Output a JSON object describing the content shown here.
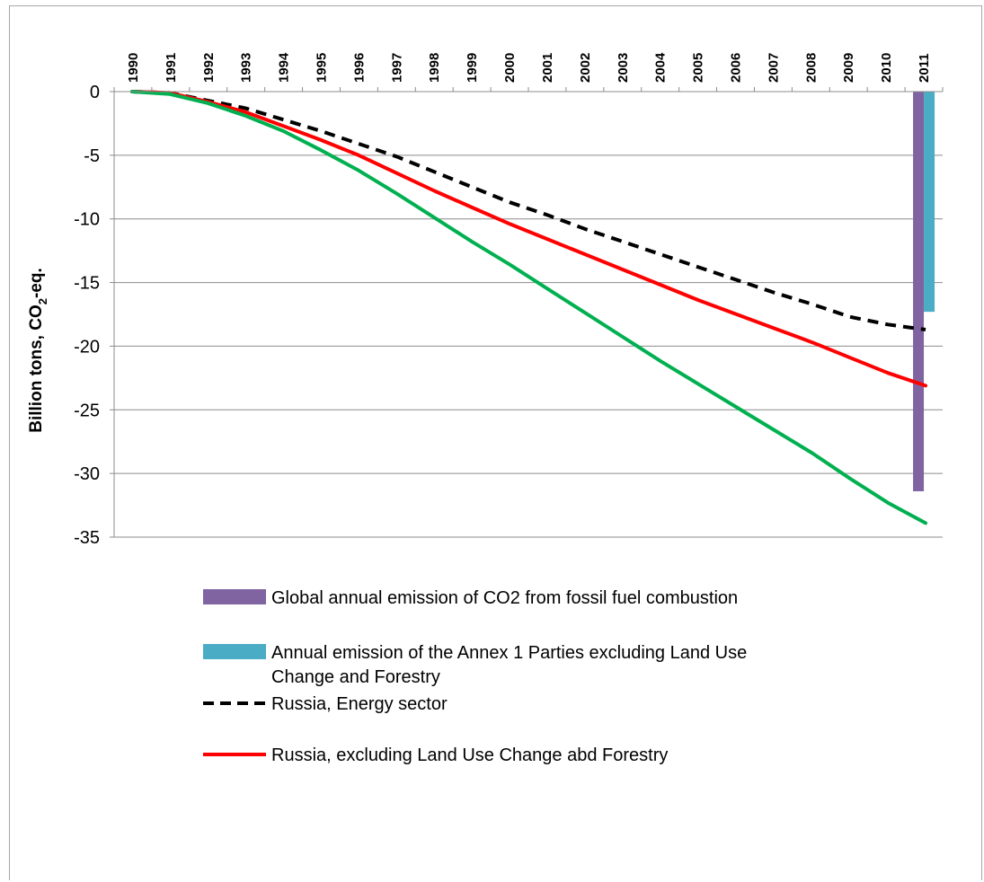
{
  "chart_data": {
    "type": "line",
    "title": "",
    "ylabel": "Billion tons, CO₂-eq.",
    "ylabel_main": "Billion tons, CO",
    "ylabel_sub": "2",
    "ylabel_tail": "-eq.",
    "xlabel": "",
    "ylim": [
      -35,
      0
    ],
    "yticks": [
      0,
      -5,
      -10,
      -15,
      -20,
      -25,
      -30,
      -35
    ],
    "x_axis_position": "top",
    "grid": true,
    "legend_position": "bottom",
    "categories": [
      "1990",
      "1991",
      "1992",
      "1993",
      "1994",
      "1995",
      "1996",
      "1997",
      "1998",
      "1999",
      "2000",
      "2001",
      "2002",
      "2003",
      "2004",
      "2005",
      "2006",
      "2007",
      "2008",
      "2009",
      "2010",
      "2011"
    ],
    "series": [
      {
        "name": "Global annual emission of CO2 from fossil fuel combustion",
        "kind": "bar",
        "color": "#8064a2",
        "category": "2011",
        "value": -31.4
      },
      {
        "name": "Annual emission of the Annex 1 Parties excluding Land Use Change and Forestry",
        "kind": "bar",
        "color": "#4bacc6",
        "category": "2011",
        "value": -17.3
      },
      {
        "name": "Russia, Energy sector",
        "kind": "line",
        "dash": true,
        "color": "#000000",
        "values": [
          0,
          -0.1,
          -0.7,
          -1.3,
          -2.2,
          -3.1,
          -4.1,
          -5.1,
          -6.3,
          -7.5,
          -8.7,
          -9.7,
          -10.8,
          -11.8,
          -12.8,
          -13.8,
          -14.8,
          -15.8,
          -16.7,
          -17.7,
          -18.3,
          -18.7
        ]
      },
      {
        "name": "Russia, excluding Land Use Change abd Forestry",
        "kind": "line",
        "dash": false,
        "color": "#ff0000",
        "values": [
          0,
          -0.1,
          -0.8,
          -1.6,
          -2.7,
          -3.8,
          -5.0,
          -6.4,
          -7.8,
          -9.1,
          -10.4,
          -11.6,
          -12.8,
          -14.0,
          -15.2,
          -16.4,
          -17.5,
          -18.6,
          -19.7,
          -20.9,
          -22.1,
          -23.1
        ]
      },
      {
        "name": "",
        "kind": "line",
        "dash": false,
        "color": "#00b050",
        "values": [
          0,
          -0.2,
          -0.9,
          -1.9,
          -3.1,
          -4.6,
          -6.2,
          -8.0,
          -9.9,
          -11.8,
          -13.6,
          -15.5,
          -17.4,
          -19.3,
          -21.2,
          -23.0,
          -24.8,
          -26.6,
          -28.4,
          -30.4,
          -32.3,
          -33.9
        ]
      }
    ],
    "legend": [
      {
        "label": "Global annual emission of CO2 from fossil fuel combustion",
        "symbol": "bar",
        "color": "#8064a2"
      },
      {
        "label": "Annual emission of the Annex 1 Parties excluding Land Use Change and Forestry",
        "symbol": "bar",
        "color": "#4bacc6"
      },
      {
        "label": "Russia, Energy sector",
        "symbol": "dash",
        "color": "#000000"
      },
      {
        "label": "Russia, excluding Land Use Change abd Forestry",
        "symbol": "line",
        "color": "#ff0000"
      }
    ]
  }
}
